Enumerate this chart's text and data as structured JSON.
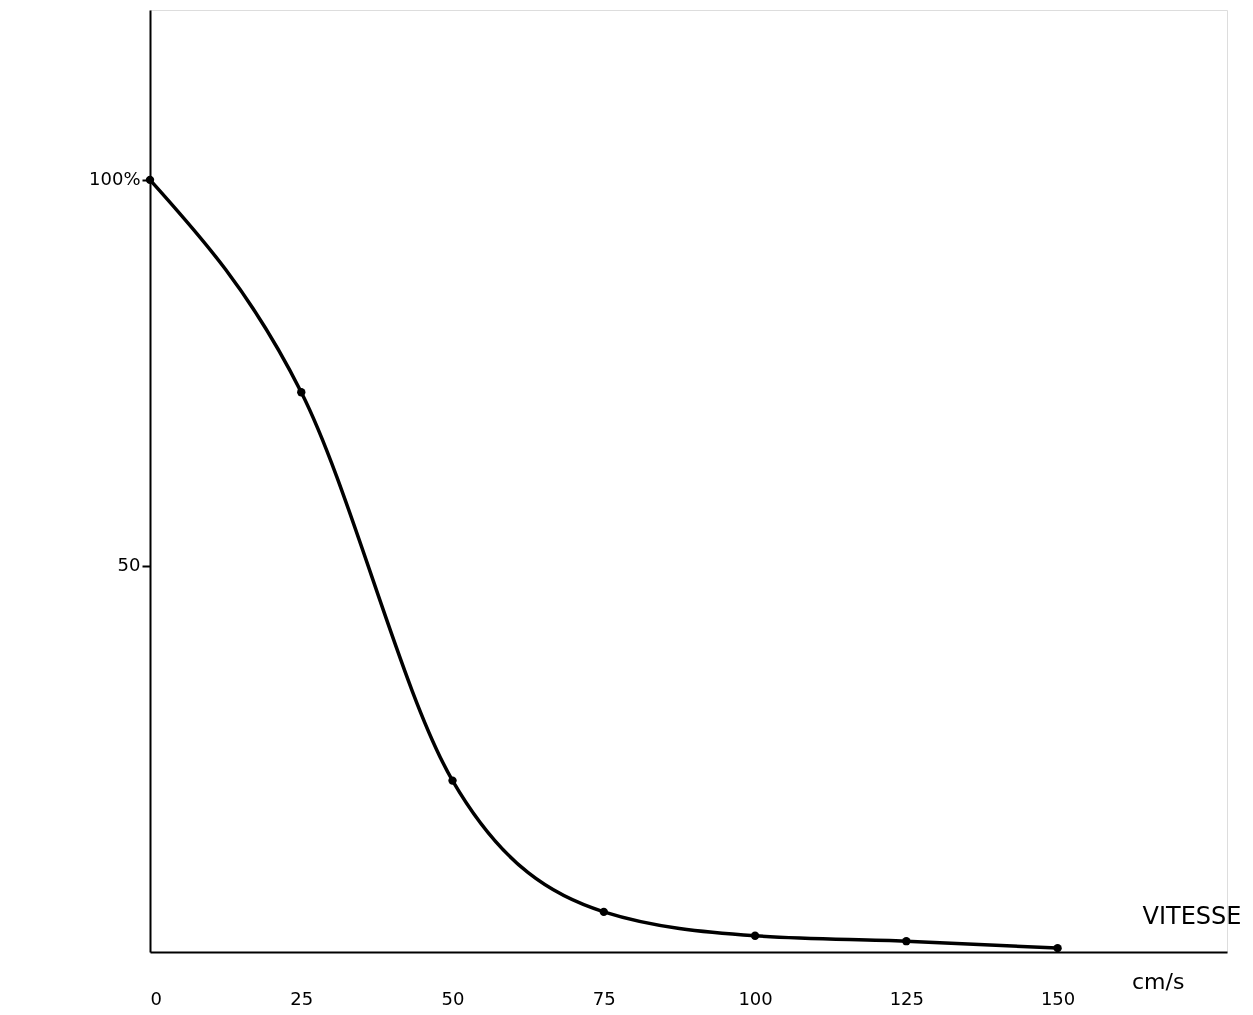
{
  "chart_data": {
    "type": "line",
    "xlabel": "VITESSE",
    "annotations": [
      "cm/s"
    ],
    "x": [
      0,
      25,
      50,
      75,
      100,
      125,
      150
    ],
    "series": [
      {
        "color": "#000000",
        "values": [
          100,
          72.5,
          22.2,
          5.2,
          2.1,
          1.4,
          0.5
        ]
      }
    ],
    "xlim": [
      0,
      178
    ],
    "ylim": [
      0,
      122
    ],
    "xticks": [
      0,
      25,
      50,
      75,
      100,
      125,
      150
    ],
    "yticks": [
      {
        "value": 50,
        "label": "50"
      },
      {
        "value": 100,
        "label": "100%"
      }
    ],
    "marker": "circle",
    "line_style": "solid",
    "grid": false
  }
}
